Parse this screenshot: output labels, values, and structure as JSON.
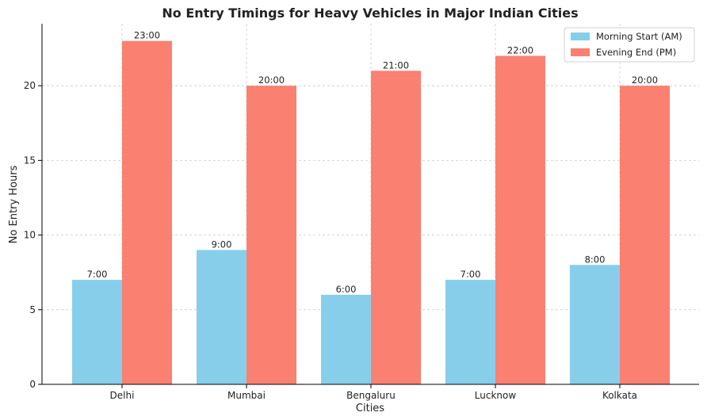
{
  "chart_data": {
    "type": "bar",
    "title": "No Entry Timings for Heavy Vehicles in Major Indian Cities",
    "xlabel": "Cities",
    "ylabel": "No Entry Hours",
    "categories": [
      "Delhi",
      "Mumbai",
      "Bengaluru",
      "Lucknow",
      "Kolkata"
    ],
    "series": [
      {
        "name": "Morning Start (AM)",
        "color": "#87ceeb",
        "values": [
          7,
          9,
          6,
          7,
          8
        ],
        "labels": [
          "7:00",
          "9:00",
          "6:00",
          "7:00",
          "8:00"
        ]
      },
      {
        "name": "Evening End (PM)",
        "color": "#fa8072",
        "values": [
          23,
          20,
          21,
          22,
          20
        ],
        "labels": [
          "23:00",
          "20:00",
          "21:00",
          "22:00",
          "20:00"
        ]
      }
    ],
    "ylim": [
      0,
      24.15
    ],
    "yticks": [
      0,
      5,
      10,
      15,
      20
    ],
    "grid": true,
    "legend_position": "top-right"
  }
}
